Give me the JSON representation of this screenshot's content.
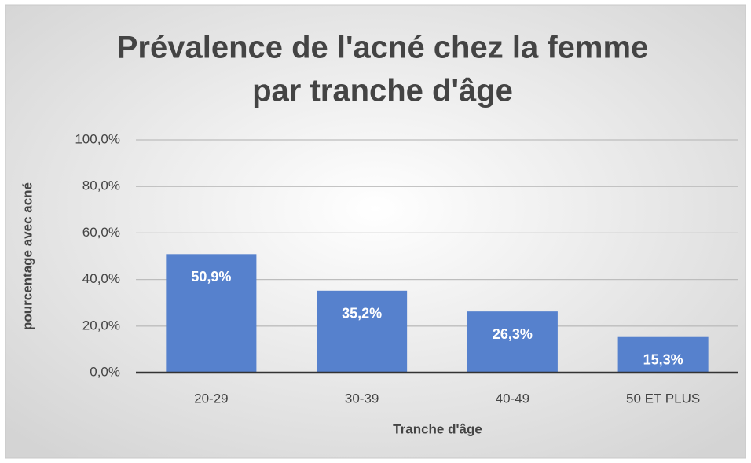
{
  "chart_data": {
    "type": "bar",
    "title": [
      "Prévalence de l'acné chez la femme",
      "par tranche d'âge"
    ],
    "x_label": "Tranche d'âge",
    "y_label": "pourcentage avec acné",
    "categories": [
      "20-29",
      "30-39",
      "40-49",
      "50 ET PLUS"
    ],
    "values": [
      50.9,
      35.2,
      26.3,
      15.3
    ],
    "value_labels": [
      "50,9%",
      "35,2%",
      "26,3%",
      "15,3%"
    ],
    "color": "#5681cd",
    "ylim": [
      0,
      100
    ],
    "yticks": [
      {
        "value": 0,
        "label": "0,0%"
      },
      {
        "value": 20,
        "label": "20,0%"
      },
      {
        "value": 40,
        "label": "40,0%"
      },
      {
        "value": 60,
        "label": "60,0%"
      },
      {
        "value": 80,
        "label": "80,0%"
      },
      {
        "value": 100,
        "label": "100,0%"
      }
    ],
    "grid": true
  }
}
